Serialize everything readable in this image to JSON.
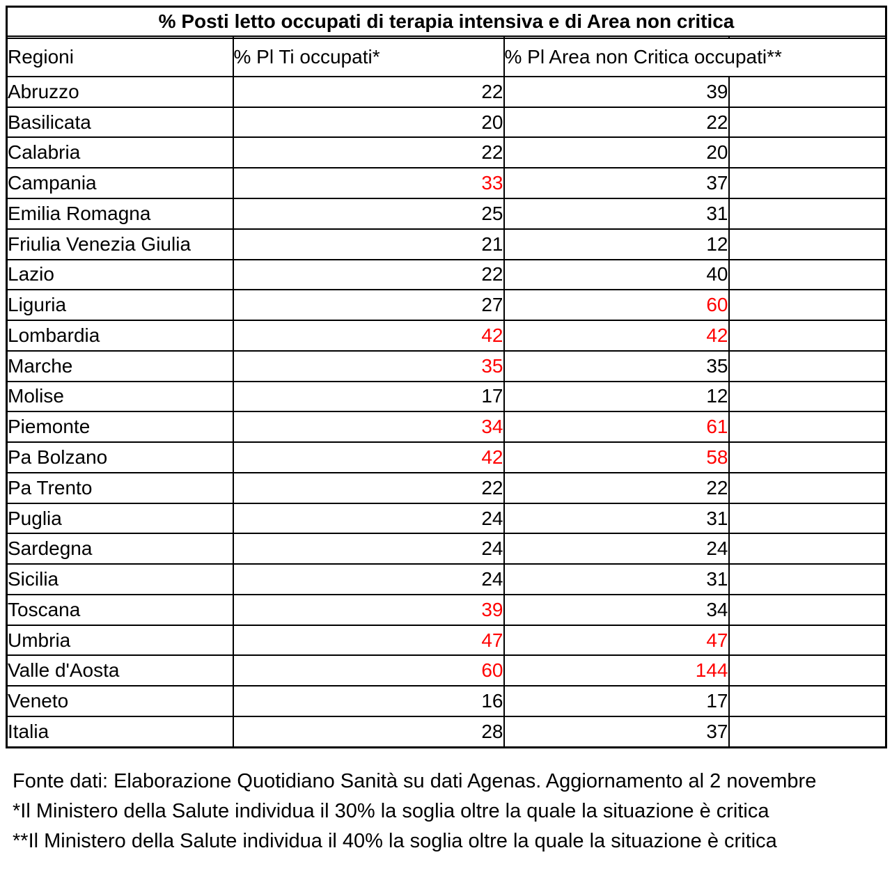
{
  "title": "% Posti letto occupati di terapia intensiva e di Area non critica",
  "table": {
    "column_headers": {
      "regions": "Regioni",
      "icu": "% Pl Ti occupati*",
      "non_critical": "% Pl Area non Critica occupati**"
    },
    "rows": [
      {
        "region": "Abruzzo",
        "icu": "22",
        "icu_critical": false,
        "non_critical": "39",
        "non_critical_critical": false
      },
      {
        "region": "Basilicata",
        "icu": "20",
        "icu_critical": false,
        "non_critical": "22",
        "non_critical_critical": false
      },
      {
        "region": "Calabria",
        "icu": "22",
        "icu_critical": false,
        "non_critical": "20",
        "non_critical_critical": false
      },
      {
        "region": "Campania",
        "icu": "33",
        "icu_critical": true,
        "non_critical": "37",
        "non_critical_critical": false
      },
      {
        "region": "Emilia Romagna",
        "icu": "25",
        "icu_critical": false,
        "non_critical": "31",
        "non_critical_critical": false
      },
      {
        "region": "Friulia Venezia Giulia",
        "icu": "21",
        "icu_critical": false,
        "non_critical": "12",
        "non_critical_critical": false
      },
      {
        "region": "Lazio",
        "icu": "22",
        "icu_critical": false,
        "non_critical": "40",
        "non_critical_critical": false
      },
      {
        "region": "Liguria",
        "icu": "27",
        "icu_critical": false,
        "non_critical": "60",
        "non_critical_critical": true
      },
      {
        "region": "Lombardia",
        "icu": "42",
        "icu_critical": true,
        "non_critical": "42",
        "non_critical_critical": true
      },
      {
        "region": "Marche",
        "icu": "35",
        "icu_critical": true,
        "non_critical": "35",
        "non_critical_critical": false
      },
      {
        "region": "Molise",
        "icu": "17",
        "icu_critical": false,
        "non_critical": "12",
        "non_critical_critical": false
      },
      {
        "region": "Piemonte",
        "icu": "34",
        "icu_critical": true,
        "non_critical": "61",
        "non_critical_critical": true
      },
      {
        "region": "Pa Bolzano",
        "icu": "42",
        "icu_critical": true,
        "non_critical": "58",
        "non_critical_critical": true
      },
      {
        "region": "Pa Trento",
        "icu": "22",
        "icu_critical": false,
        "non_critical": "22",
        "non_critical_critical": false
      },
      {
        "region": "Puglia",
        "icu": "24",
        "icu_critical": false,
        "non_critical": "31",
        "non_critical_critical": false
      },
      {
        "region": "Sardegna",
        "icu": "24",
        "icu_critical": false,
        "non_critical": "24",
        "non_critical_critical": false
      },
      {
        "region": "Sicilia",
        "icu": "24",
        "icu_critical": false,
        "non_critical": "31",
        "non_critical_critical": false
      },
      {
        "region": "Toscana",
        "icu": "39",
        "icu_critical": true,
        "non_critical": "34",
        "non_critical_critical": false
      },
      {
        "region": "Umbria",
        "icu": "47",
        "icu_critical": true,
        "non_critical": "47",
        "non_critical_critical": true
      },
      {
        "region": "Valle d'Aosta",
        "icu": "60",
        "icu_critical": true,
        "non_critical": "144",
        "non_critical_critical": true
      },
      {
        "region": "Veneto",
        "icu": "16",
        "icu_critical": false,
        "non_critical": "17",
        "non_critical_critical": false
      },
      {
        "region": "Italia",
        "icu": "28",
        "icu_critical": false,
        "non_critical": "37",
        "non_critical_critical": false
      }
    ]
  },
  "footnotes": {
    "source": "Fonte dati: Elaborazione Quotidiano Sanità su dati Agenas. Aggiornamento al 2 novembre",
    "note_icu": "*Il Ministero della Salute individua il 30% la soglia oltre la quale la situazione è critica",
    "note_non_critical": "**Il Ministero della Salute individua il 40% la soglia oltre la quale la situazione è critica"
  },
  "colors": {
    "critical_value": "#ff0000",
    "text": "#000000",
    "border": "#000000",
    "background": "#ffffff"
  },
  "chart_data": {
    "type": "table",
    "title": "% Posti letto occupati di terapia intensiva e di Area non critica",
    "categories": [
      "Abruzzo",
      "Basilicata",
      "Calabria",
      "Campania",
      "Emilia Romagna",
      "Friulia Venezia Giulia",
      "Lazio",
      "Liguria",
      "Lombardia",
      "Marche",
      "Molise",
      "Piemonte",
      "Pa Bolzano",
      "Pa Trento",
      "Puglia",
      "Sardegna",
      "Sicilia",
      "Toscana",
      "Umbria",
      "Valle d'Aosta",
      "Veneto",
      "Italia"
    ],
    "series": [
      {
        "name": "% Pl Ti occupati*",
        "values": [
          22,
          20,
          22,
          33,
          25,
          21,
          22,
          27,
          42,
          35,
          17,
          34,
          42,
          22,
          24,
          24,
          24,
          39,
          47,
          60,
          16,
          28
        ],
        "critical_flags": [
          false,
          false,
          false,
          true,
          false,
          false,
          false,
          false,
          true,
          true,
          false,
          true,
          true,
          false,
          false,
          false,
          false,
          true,
          true,
          true,
          false,
          false
        ]
      },
      {
        "name": "% Pl Area non Critica occupati**",
        "values": [
          39,
          22,
          20,
          37,
          31,
          12,
          40,
          60,
          42,
          35,
          12,
          61,
          58,
          22,
          31,
          24,
          31,
          34,
          47,
          144,
          17,
          37
        ],
        "critical_flags": [
          false,
          false,
          false,
          false,
          false,
          false,
          false,
          true,
          true,
          false,
          false,
          true,
          true,
          false,
          false,
          false,
          false,
          false,
          true,
          true,
          false,
          false
        ]
      }
    ],
    "annotations": [
      "Fonte dati: Elaborazione Quotidiano Sanità su dati Agenas. Aggiornamento al 2 novembre",
      "*Il Ministero della Salute individua il 30% la soglia oltre la quale la situazione è critica",
      "**Il Ministero della Salute individua il 40% la soglia oltre la quale la situazione è critica"
    ],
    "style_note": "values above threshold rendered in red (#ff0000)"
  }
}
